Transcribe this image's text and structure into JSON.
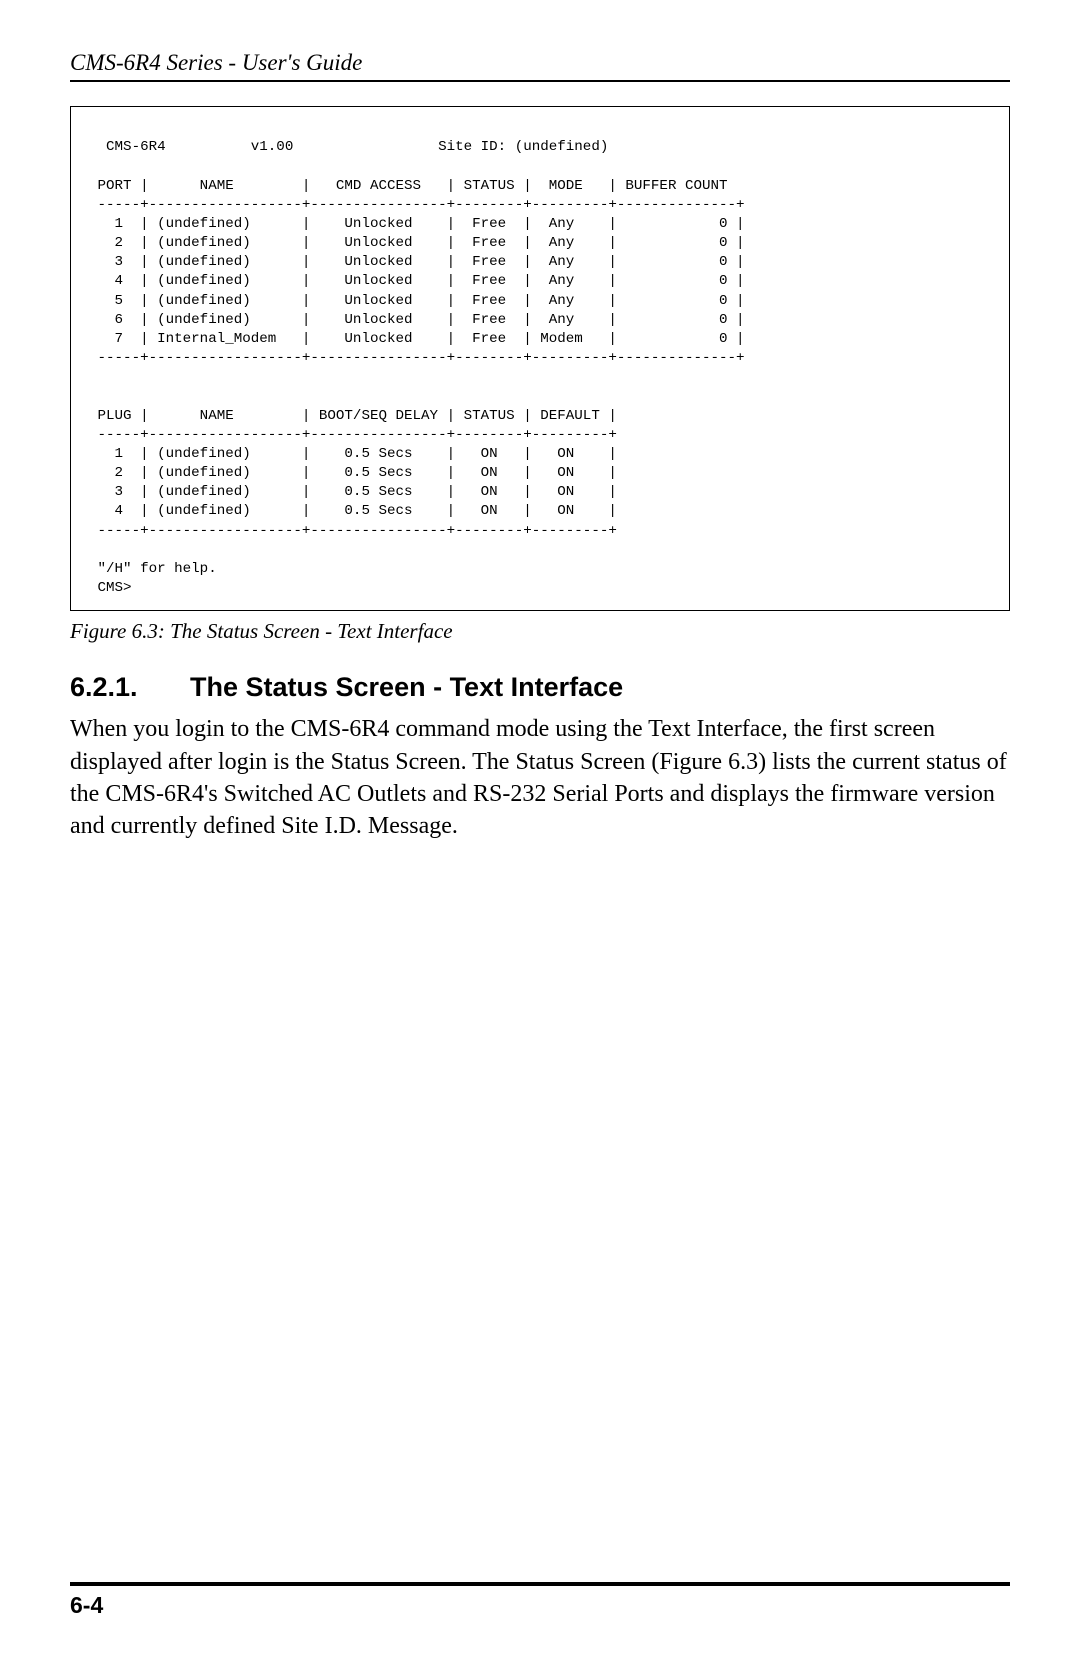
{
  "header": {
    "running": "CMS-6R4 Series - User's Guide"
  },
  "terminal": {
    "header_line": "  CMS-6R4          v1.00                 Site ID: (undefined)",
    "port_header": " PORT |      NAME        |   CMD ACCESS   | STATUS |  MODE   | BUFFER COUNT",
    "port_sep": " -----+------------------+----------------+--------+---------+--------------+",
    "port_rows": [
      "   1  | (undefined)      |    Unlocked    |  Free  |  Any    |            0 |",
      "   2  | (undefined)      |    Unlocked    |  Free  |  Any    |            0 |",
      "   3  | (undefined)      |    Unlocked    |  Free  |  Any    |            0 |",
      "   4  | (undefined)      |    Unlocked    |  Free  |  Any    |            0 |",
      "   5  | (undefined)      |    Unlocked    |  Free  |  Any    |            0 |",
      "   6  | (undefined)      |    Unlocked    |  Free  |  Any    |            0 |",
      "   7  | Internal_Modem   |    Unlocked    |  Free  | Modem   |            0 |"
    ],
    "plug_header": " PLUG |      NAME        | BOOT/SEQ DELAY | STATUS | DEFAULT |",
    "plug_sep": " -----+------------------+----------------+--------+---------+",
    "plug_rows": [
      "   1  | (undefined)      |    0.5 Secs    |   ON   |   ON    |",
      "   2  | (undefined)      |    0.5 Secs    |   ON   |   ON    |",
      "   3  | (undefined)      |    0.5 Secs    |   ON   |   ON    |",
      "   4  | (undefined)      |    0.5 Secs    |   ON   |   ON    |"
    ],
    "help_line": " \"/H\" for help.",
    "prompt": " CMS>"
  },
  "figure": {
    "caption": "Figure 6.3:  The Status Screen - Text Interface"
  },
  "section": {
    "number": "6.2.1.",
    "title": "The Status Screen - Text Interface",
    "body": "When you login to the CMS-6R4 command mode using the Text Interface, the first screen displayed after login is the Status Screen.  The Status Screen (Figure 6.3) lists the current status of the CMS-6R4's Switched AC Outlets and RS-232 Serial Ports and displays the firmware version and currently defined Site I.D. Message."
  },
  "footer": {
    "page": "6-4"
  }
}
